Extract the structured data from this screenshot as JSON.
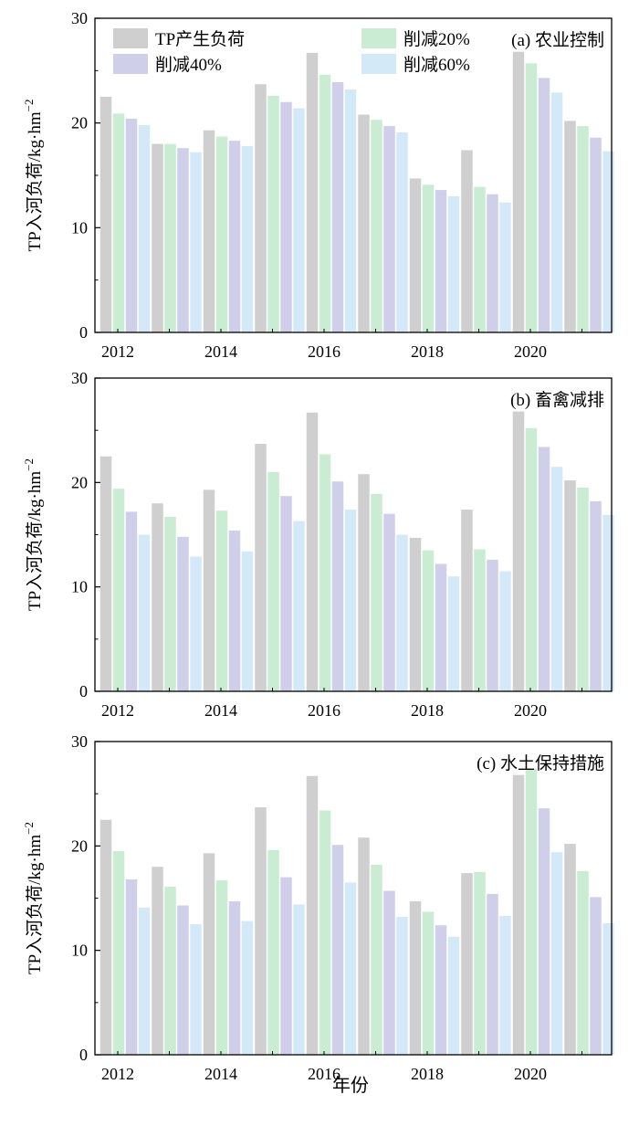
{
  "figure": {
    "ylabel": "TP入河负荷/kg·hm",
    "ylabel_sup": "−2",
    "xlabel": "年份"
  },
  "legend": [
    {
      "label": "TP产生负荷",
      "color": "#cfcfcf"
    },
    {
      "label": "削减20%",
      "color": "#c9ecd2"
    },
    {
      "label": "削减40%",
      "color": "#cfcfea"
    },
    {
      "label": "削减60%",
      "color": "#d3e9f8"
    }
  ],
  "chart_data": [
    {
      "type": "bar",
      "title": "(a) 农业控制",
      "categories": [
        "2012",
        "2013",
        "2014",
        "2015",
        "2016",
        "2017",
        "2018",
        "2019",
        "2020",
        "2021"
      ],
      "x_tick_labels": [
        "2012",
        "2014",
        "2016",
        "2018",
        "2020"
      ],
      "ylim": [
        0,
        30
      ],
      "y_ticks": [
        0,
        10,
        20,
        30
      ],
      "ylabel": "TP入河负荷/kg·hm−2",
      "legend_placement": "top",
      "grid": false,
      "series": [
        {
          "name": "TP产生负荷",
          "values": [
            22.5,
            18.0,
            19.3,
            23.7,
            26.7,
            20.8,
            14.7,
            17.4,
            26.8,
            20.2
          ]
        },
        {
          "name": "削减20%",
          "values": [
            20.9,
            18.0,
            18.7,
            22.6,
            24.6,
            20.3,
            14.1,
            13.9,
            25.7,
            19.7
          ]
        },
        {
          "name": "削减40%",
          "values": [
            20.4,
            17.6,
            18.3,
            22.0,
            23.9,
            19.7,
            13.6,
            13.2,
            24.3,
            18.6
          ]
        },
        {
          "name": "削减60%",
          "values": [
            19.8,
            17.2,
            17.8,
            21.4,
            23.2,
            19.1,
            13.0,
            12.4,
            22.9,
            17.3
          ]
        }
      ]
    },
    {
      "type": "bar",
      "title": "(b) 畜禽减排",
      "categories": [
        "2012",
        "2013",
        "2014",
        "2015",
        "2016",
        "2017",
        "2018",
        "2019",
        "2020",
        "2021"
      ],
      "x_tick_labels": [
        "2012",
        "2014",
        "2016",
        "2018",
        "2020"
      ],
      "ylim": [
        0,
        30
      ],
      "y_ticks": [
        0,
        10,
        20,
        30
      ],
      "ylabel": "TP入河负荷/kg·hm−2",
      "grid": false,
      "series": [
        {
          "name": "TP产生负荷",
          "values": [
            22.5,
            18.0,
            19.3,
            23.7,
            26.7,
            20.8,
            14.7,
            17.4,
            26.8,
            20.2
          ]
        },
        {
          "name": "削减20%",
          "values": [
            19.4,
            16.7,
            17.3,
            21.0,
            22.7,
            18.9,
            13.5,
            13.6,
            25.2,
            19.5
          ]
        },
        {
          "name": "削减40%",
          "values": [
            17.2,
            14.8,
            15.4,
            18.7,
            20.1,
            17.0,
            12.2,
            12.6,
            23.4,
            18.2
          ]
        },
        {
          "name": "削减60%",
          "values": [
            15.0,
            12.9,
            13.4,
            16.3,
            17.4,
            15.0,
            11.0,
            11.5,
            21.5,
            16.9
          ]
        }
      ]
    },
    {
      "type": "bar",
      "title": "(c) 水土保持措施",
      "categories": [
        "2012",
        "2013",
        "2014",
        "2015",
        "2016",
        "2017",
        "2018",
        "2019",
        "2020",
        "2021"
      ],
      "x_tick_labels": [
        "2012",
        "2014",
        "2016",
        "2018",
        "2020"
      ],
      "ylim": [
        0,
        30
      ],
      "y_ticks": [
        0,
        10,
        20,
        30
      ],
      "ylabel": "TP入河负荷/kg·hm−2",
      "xlabel": "年份",
      "grid": false,
      "series": [
        {
          "name": "TP产生负荷",
          "values": [
            22.5,
            18.0,
            19.3,
            23.7,
            26.7,
            20.8,
            14.7,
            17.4,
            26.8,
            20.2
          ]
        },
        {
          "name": "削减20%",
          "values": [
            19.5,
            16.1,
            16.7,
            19.6,
            23.4,
            18.2,
            13.7,
            17.5,
            27.4,
            17.6
          ]
        },
        {
          "name": "削减40%",
          "values": [
            16.8,
            14.3,
            14.7,
            17.0,
            20.1,
            15.7,
            12.4,
            15.4,
            23.6,
            15.1
          ]
        },
        {
          "name": "削减60%",
          "values": [
            14.1,
            12.5,
            12.8,
            14.4,
            16.5,
            13.2,
            11.3,
            13.3,
            19.4,
            12.6
          ]
        }
      ]
    }
  ]
}
